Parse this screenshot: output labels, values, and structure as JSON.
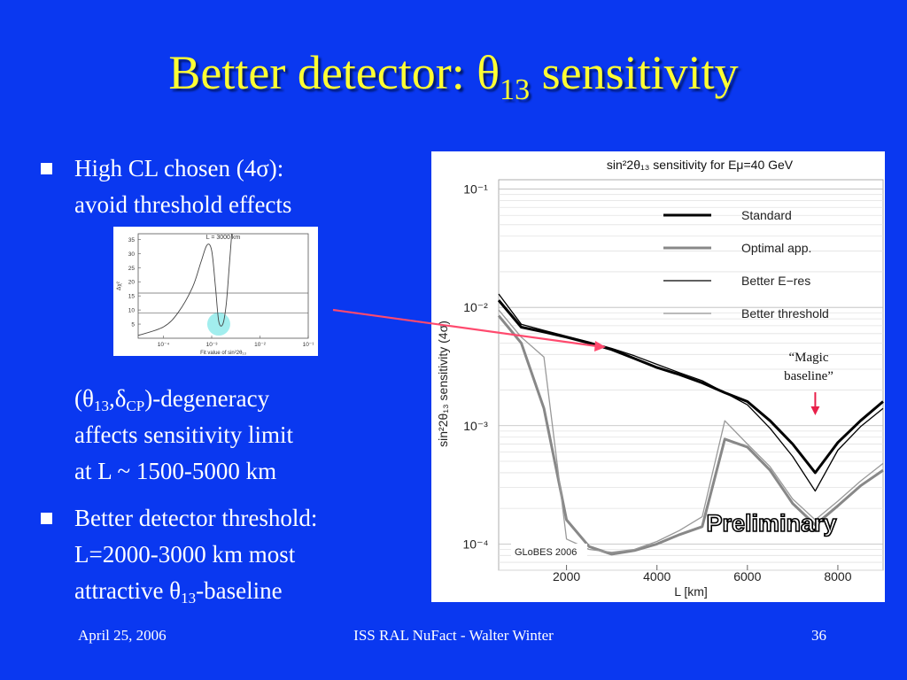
{
  "slide": {
    "title_main": "Better detector: θ",
    "title_sub": "13",
    "title_end": " sensitivity",
    "bullet1": {
      "line1": "High CL chosen (4σ):",
      "line2": "avoid threshold effects"
    },
    "deg": {
      "open": "(θ",
      "sub1": "13",
      "comma": ",δ",
      "sub2": "CP",
      "close": ")-degeneracy",
      "line2": "affects sensitivity limit",
      "line3": "at L ~ 1500-5000 km"
    },
    "bullet2": {
      "line1": "Better detector threshold:",
      "line2": "L=2000-3000 km most",
      "line3_a": "attractive θ",
      "line3_sub": "13",
      "line3_b": "-baseline"
    }
  },
  "footer": {
    "date": "April 25, 2006",
    "center": "ISS RAL NuFact - Walter Winter",
    "page": "36"
  },
  "colors": {
    "background": "#0a38f0",
    "title": "#ffff33",
    "arrow": "#ff4a6e",
    "magic_arrow": "#e8204a"
  },
  "chart_data": [
    {
      "type": "line",
      "title": "L = 3000 km",
      "xlabel": "Fit value of sin²2θ₁₃",
      "ylabel": "Δχ²",
      "xscale": "log",
      "xlim": [
        3e-05,
        0.1
      ],
      "ylim": [
        0,
        37
      ],
      "xticks": [
        "10⁻⁴",
        "10⁻³",
        "10⁻²",
        "10⁻¹"
      ],
      "yticks": [
        "5",
        "10",
        "15",
        "20",
        "25",
        "30",
        "35"
      ],
      "hlines": [
        9,
        16
      ],
      "highlight": {
        "x": 0.0014,
        "y": 5
      },
      "series": [
        {
          "x": [
            3e-05,
            0.0001,
            0.0002,
            0.0004,
            0.0006,
            0.0008,
            0.001,
            0.0012,
            0.0014,
            0.0017,
            0.002,
            0.0023,
            0.0026
          ],
          "y": [
            1,
            4,
            9,
            18,
            27,
            33,
            31,
            18,
            6,
            5,
            12,
            25,
            37
          ]
        }
      ]
    },
    {
      "type": "line",
      "title": "sin²2θ₁₃ sensitivity for Eμ=40 GeV",
      "xlabel": "L [km]",
      "ylabel": "sin²2θ₁₃ sensitivity (4σ)",
      "yscale": "log",
      "xlim": [
        500,
        9000
      ],
      "ylim": [
        6e-05,
        0.12
      ],
      "xticks": [
        "2000",
        "4000",
        "6000",
        "8000"
      ],
      "yticks": [
        "10⁻¹",
        "10⁻²",
        "10⁻³",
        "10⁻⁴"
      ],
      "legend_position": "top-right",
      "annotations": {
        "source": "GLoBES 2006",
        "stamp": "Preliminary",
        "magic_l1": "“Magic",
        "magic_l2": "baseline”"
      },
      "magic_baseline_L": 7500,
      "x": [
        500,
        1000,
        1500,
        2000,
        2500,
        3000,
        3500,
        4000,
        4500,
        5000,
        5500,
        6000,
        6500,
        7000,
        7500,
        8000,
        8500,
        9000
      ],
      "series": [
        {
          "name": "Standard",
          "color": "#000000",
          "width": 3,
          "values": [
            0.0115,
            0.0068,
            0.0062,
            0.0056,
            0.005,
            0.0044,
            0.0037,
            0.0031,
            0.0027,
            0.0023,
            0.0019,
            0.0016,
            0.0011,
            0.0007,
            0.0004,
            0.00072,
            0.0011,
            0.0016
          ]
        },
        {
          "name": "Optimal app.",
          "color": "#888888",
          "width": 3,
          "values": [
            0.0085,
            0.005,
            0.0014,
            0.00016,
            9.5e-05,
            8.2e-05,
            8.8e-05,
            0.0001,
            0.00012,
            0.00014,
            0.00077,
            0.00066,
            0.00042,
            0.00022,
            0.000145,
            0.00021,
            0.00031,
            0.00042
          ]
        },
        {
          "name": "Better E−res",
          "color": "#000000",
          "width": 1.3,
          "values": [
            0.013,
            0.0072,
            0.0064,
            0.0057,
            0.0051,
            0.0045,
            0.0039,
            0.0033,
            0.0028,
            0.0024,
            0.0019,
            0.0015,
            0.00095,
            0.00055,
            0.00028,
            0.00062,
            0.00098,
            0.0014
          ]
        },
        {
          "name": "Better threshold",
          "color": "#999999",
          "width": 1.3,
          "values": [
            0.0095,
            0.0056,
            0.0038,
            0.00011,
            9e-05,
            8.5e-05,
            9e-05,
            0.000105,
            0.00013,
            0.00017,
            0.0011,
            0.0007,
            0.00045,
            0.00024,
            0.00016,
            0.00023,
            0.00034,
            0.00048
          ]
        }
      ]
    }
  ]
}
